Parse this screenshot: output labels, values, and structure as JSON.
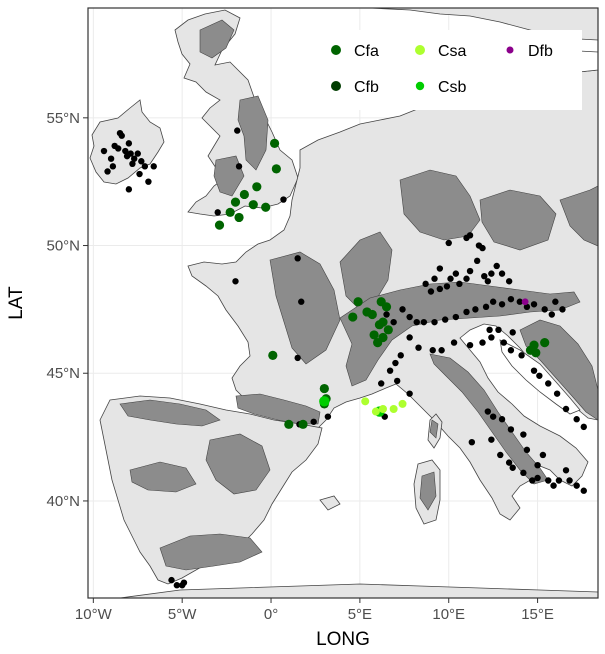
{
  "axes": {
    "x_title": "LONG",
    "y_title": "LAT",
    "x_ticks": [
      {
        "value": -10,
        "label": "10°W"
      },
      {
        "value": -5,
        "label": "5°W"
      },
      {
        "value": 0,
        "label": "0°"
      },
      {
        "value": 5,
        "label": "5°E"
      },
      {
        "value": 10,
        "label": "10°E"
      },
      {
        "value": 15,
        "label": "15°E"
      }
    ],
    "y_ticks": [
      {
        "value": 40,
        "label": "40°N"
      },
      {
        "value": 45,
        "label": "45°N"
      },
      {
        "value": 50,
        "label": "50°N"
      },
      {
        "value": 55,
        "label": "55°N"
      }
    ],
    "x_range": [
      -10.3,
      18.4
    ],
    "y_range": [
      36.2,
      59.3
    ]
  },
  "colors": {
    "land": "#e5e5e5",
    "mountain": "#8c8c8c",
    "border": "#444444",
    "grid": "#ebebeb",
    "Cfa": "#006400",
    "Cfb": "#003d00",
    "Csa": "#adff2f",
    "Csb": "#00cd00",
    "Dfb": "#8b008b",
    "black": "#000000"
  },
  "legend": {
    "items": [
      {
        "key": "Cfa",
        "label": "Cfa"
      },
      {
        "key": "Csa",
        "label": "Csa"
      },
      {
        "key": "Dfb",
        "label": "Dfb"
      },
      {
        "key": "Cfb",
        "label": "Cfb"
      },
      {
        "key": "Csb",
        "label": "Csb"
      }
    ]
  },
  "points": {
    "black": [
      [
        -8.5,
        54.4
      ],
      [
        -8.4,
        54.3
      ],
      [
        -8.8,
        53.9
      ],
      [
        -8.6,
        53.8
      ],
      [
        -8.2,
        53.7
      ],
      [
        -7.9,
        53.6
      ],
      [
        -8.1,
        53.5
      ],
      [
        -7.5,
        53.6
      ],
      [
        -7.7,
        53.4
      ],
      [
        -7.3,
        53.3
      ],
      [
        -7.8,
        53.2
      ],
      [
        -9.0,
        53.4
      ],
      [
        -8.9,
        53.1
      ],
      [
        -9.2,
        52.9
      ],
      [
        -7.1,
        53.1
      ],
      [
        -6.6,
        53.1
      ],
      [
        -6.9,
        52.5
      ],
      [
        -7.4,
        52.8
      ],
      [
        -8.0,
        52.2
      ],
      [
        -9.4,
        53.7
      ],
      [
        -8.0,
        54.0
      ],
      [
        -1.8,
        53.1
      ],
      [
        -1.9,
        54.5
      ],
      [
        0.7,
        51.8
      ],
      [
        -3.0,
        51.3
      ],
      [
        1.5,
        49.5
      ],
      [
        1.7,
        47.8
      ],
      [
        -2.0,
        48.6
      ],
      [
        1.5,
        45.6
      ],
      [
        1.6,
        43.0
      ],
      [
        2.4,
        43.1
      ],
      [
        3.2,
        43.3
      ],
      [
        9.9,
        48.4
      ],
      [
        10.1,
        48.7
      ],
      [
        10.4,
        48.9
      ],
      [
        10.6,
        48.5
      ],
      [
        11.0,
        48.7
      ],
      [
        11.2,
        49.0
      ],
      [
        11.6,
        49.4
      ],
      [
        12.0,
        48.8
      ],
      [
        12.2,
        48.6
      ],
      [
        12.4,
        48.9
      ],
      [
        12.7,
        49.2
      ],
      [
        13.0,
        48.9
      ],
      [
        13.4,
        48.6
      ],
      [
        9.5,
        48.3
      ],
      [
        11.7,
        50.0
      ],
      [
        11.2,
        50.4
      ],
      [
        11.0,
        50.3
      ],
      [
        11.9,
        49.9
      ],
      [
        10.0,
        50.1
      ],
      [
        9.5,
        49.1
      ],
      [
        9.2,
        48.7
      ],
      [
        8.7,
        48.5
      ],
      [
        9.0,
        48.2
      ],
      [
        7.4,
        47.5
      ],
      [
        7.8,
        47.2
      ],
      [
        8.2,
        47.0
      ],
      [
        8.6,
        47.0
      ],
      [
        9.2,
        47.0
      ],
      [
        9.8,
        47.1
      ],
      [
        10.4,
        47.2
      ],
      [
        11.0,
        47.4
      ],
      [
        11.5,
        47.5
      ],
      [
        12.1,
        47.6
      ],
      [
        12.5,
        47.8
      ],
      [
        13.0,
        47.7
      ],
      [
        13.5,
        47.9
      ],
      [
        14.0,
        47.8
      ],
      [
        14.4,
        47.6
      ],
      [
        14.8,
        47.7
      ],
      [
        15.4,
        47.5
      ],
      [
        16.0,
        47.8
      ],
      [
        16.4,
        47.5
      ],
      [
        15.8,
        47.3
      ],
      [
        6.5,
        47.3
      ],
      [
        6.9,
        47.0
      ],
      [
        7.8,
        46.4
      ],
      [
        8.3,
        46.0
      ],
      [
        9.1,
        45.9
      ],
      [
        9.6,
        45.9
      ],
      [
        10.3,
        46.2
      ],
      [
        11.2,
        46.1
      ],
      [
        11.9,
        46.2
      ],
      [
        12.4,
        46.4
      ],
      [
        13.1,
        46.2
      ],
      [
        13.5,
        45.9
      ],
      [
        14.1,
        45.7
      ],
      [
        14.8,
        45.1
      ],
      [
        15.1,
        44.9
      ],
      [
        15.6,
        44.6
      ],
      [
        16.1,
        44.2
      ],
      [
        16.6,
        43.6
      ],
      [
        17.2,
        43.2
      ],
      [
        17.6,
        42.9
      ],
      [
        12.3,
        46.7
      ],
      [
        12.8,
        46.7
      ],
      [
        13.6,
        46.6
      ],
      [
        7.3,
        45.7
      ],
      [
        7.0,
        45.4
      ],
      [
        6.7,
        45.1
      ],
      [
        6.2,
        44.6
      ],
      [
        7.1,
        44.7
      ],
      [
        7.8,
        44.2
      ],
      [
        6.4,
        43.3
      ],
      [
        11.3,
        42.3
      ],
      [
        12.4,
        42.4
      ],
      [
        12.9,
        41.8
      ],
      [
        13.4,
        41.5
      ],
      [
        13.6,
        41.3
      ],
      [
        14.2,
        41.1
      ],
      [
        14.7,
        40.8
      ],
      [
        15.0,
        40.9
      ],
      [
        15.6,
        40.8
      ],
      [
        15.9,
        40.6
      ],
      [
        16.2,
        40.8
      ],
      [
        16.8,
        40.8
      ],
      [
        17.2,
        40.6
      ],
      [
        17.6,
        40.4
      ],
      [
        15.0,
        41.4
      ],
      [
        14.4,
        42.0
      ],
      [
        13.0,
        43.2
      ],
      [
        13.5,
        42.8
      ],
      [
        16.6,
        41.2
      ],
      [
        12.5,
        43.3
      ],
      [
        12.2,
        43.5
      ],
      [
        14.2,
        42.6
      ],
      [
        15.3,
        41.8
      ],
      [
        -5.0,
        36.7
      ],
      [
        -5.3,
        36.7
      ],
      [
        -5.6,
        36.9
      ],
      [
        -4.9,
        36.8
      ]
    ],
    "Cfa": [
      [
        0.2,
        54.0
      ],
      [
        0.3,
        53.0
      ],
      [
        -0.8,
        52.3
      ],
      [
        -1.5,
        52.0
      ],
      [
        -2.0,
        51.7
      ],
      [
        -2.3,
        51.3
      ],
      [
        -1.8,
        51.1
      ],
      [
        -2.9,
        50.8
      ],
      [
        -0.3,
        51.5
      ],
      [
        -1.0,
        51.6
      ],
      [
        0.1,
        45.7
      ],
      [
        3.0,
        44.4
      ],
      [
        3.1,
        44.0
      ],
      [
        3.0,
        43.8
      ],
      [
        1.0,
        43.0
      ],
      [
        1.8,
        43.0
      ],
      [
        4.9,
        47.8
      ],
      [
        5.7,
        47.3
      ],
      [
        6.1,
        46.9
      ],
      [
        6.3,
        47.0
      ],
      [
        6.6,
        46.7
      ],
      [
        5.8,
        46.5
      ],
      [
        6.0,
        46.2
      ],
      [
        6.3,
        46.4
      ],
      [
        6.5,
        47.6
      ],
      [
        6.2,
        47.8
      ],
      [
        4.6,
        47.2
      ],
      [
        5.4,
        47.4
      ],
      [
        14.8,
        46.1
      ],
      [
        14.6,
        45.9
      ],
      [
        14.9,
        45.8
      ],
      [
        15.4,
        46.2
      ]
    ],
    "Csa": [
      [
        5.3,
        43.9
      ],
      [
        6.3,
        43.6
      ],
      [
        6.9,
        43.6
      ],
      [
        7.4,
        43.8
      ],
      [
        5.9,
        43.5
      ]
    ],
    "Csb": [
      [
        3.0,
        43.9
      ],
      [
        6.1,
        43.5
      ]
    ],
    "Dfb": [
      [
        14.3,
        47.8
      ]
    ]
  }
}
